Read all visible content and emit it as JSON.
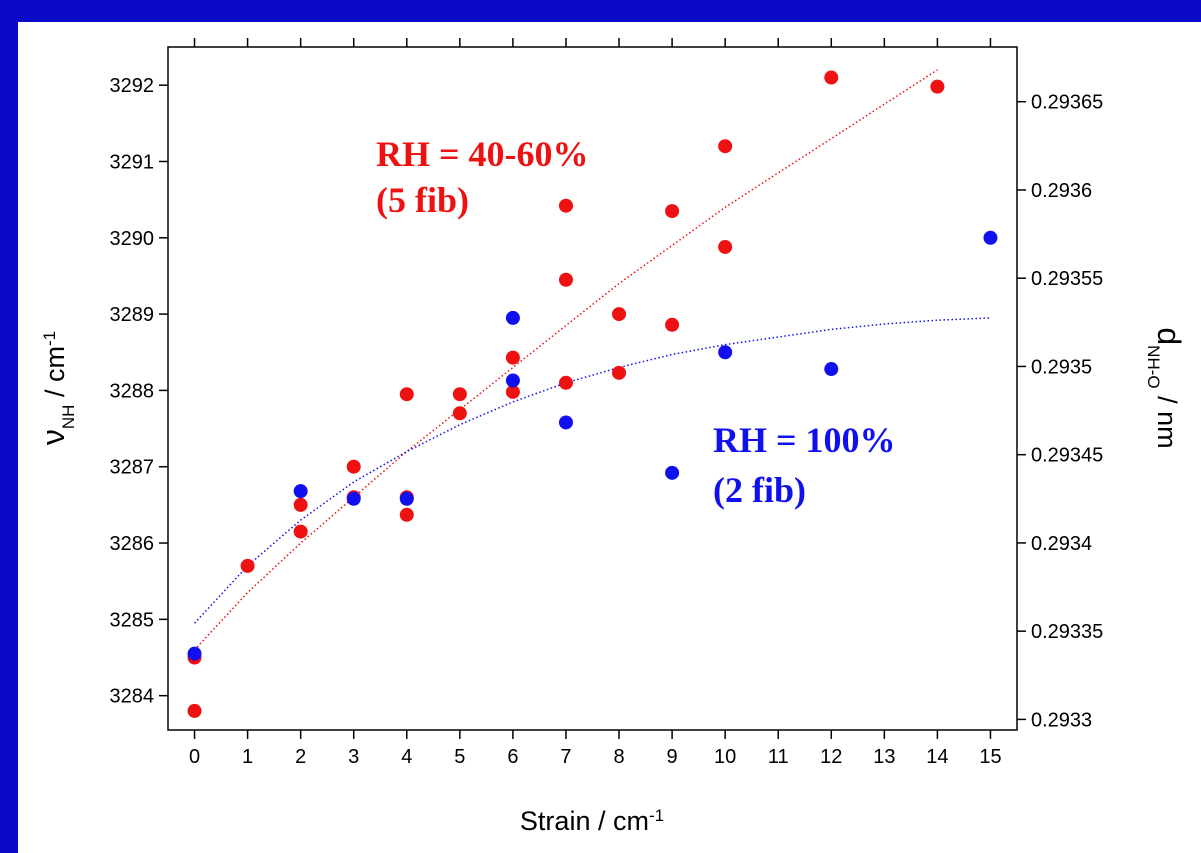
{
  "chart_data": {
    "type": "scatter",
    "x_label": {
      "main": "Strain / cm",
      "sup": "-1"
    },
    "y_label": {
      "main": "ν",
      "sub": "NH",
      "unit": " / cm",
      "sup": "-1"
    },
    "y2_label": {
      "main": "d",
      "sub": "NH-O",
      "unit": " / nm"
    },
    "xlim": [
      -0.5,
      15.5
    ],
    "xticks": [
      0,
      1,
      2,
      3,
      4,
      5,
      6,
      7,
      8,
      9,
      10,
      11,
      12,
      13,
      14,
      15
    ],
    "ylim": [
      3283.55,
      3292.5
    ],
    "yticks": [
      3284,
      3285,
      3286,
      3287,
      3288,
      3289,
      3290,
      3291,
      3292
    ],
    "y2lim": [
      0.293294,
      0.293681
    ],
    "y2ticks": [
      0.2933,
      0.29335,
      0.2934,
      0.29345,
      0.2935,
      0.29355,
      0.2936,
      0.29365
    ],
    "series": [
      {
        "name": "RH = 40-60%",
        "note": "(5 fib)",
        "color": "#ee1111",
        "x": [
          0,
          0,
          1,
          2,
          2,
          3,
          3,
          4,
          4,
          4,
          5,
          5,
          6,
          6,
          7,
          7,
          7,
          8,
          8,
          9,
          9,
          10,
          10,
          12,
          14
        ],
        "values": [
          3284.5,
          3283.8,
          3285.7,
          3286.5,
          3286.15,
          3287.0,
          3286.6,
          3287.95,
          3286.6,
          3286.37,
          3287.95,
          3287.7,
          3288.43,
          3287.98,
          3290.42,
          3289.45,
          3288.1,
          3289.0,
          3288.23,
          3290.35,
          3288.86,
          3291.2,
          3289.88,
          3292.1,
          3291.98
        ]
      },
      {
        "name": "RH = 100%",
        "note": "(2 fib)",
        "color": "#1010ee",
        "x": [
          0,
          2,
          3,
          4,
          6,
          6,
          7,
          9,
          10,
          12,
          15
        ],
        "values": [
          3284.55,
          3286.68,
          3286.58,
          3286.58,
          3288.95,
          3288.13,
          3287.58,
          3286.92,
          3288.5,
          3288.28,
          3290.0
        ]
      }
    ],
    "fits": [
      {
        "color": "#ee1111",
        "x": [
          0,
          1,
          2,
          3,
          4,
          5,
          6,
          7,
          8,
          9,
          10,
          11,
          12,
          13,
          14
        ],
        "values": [
          3284.6,
          3285.35,
          3286.0,
          3286.6,
          3287.2,
          3287.75,
          3288.3,
          3288.85,
          3289.4,
          3289.9,
          3290.4,
          3290.85,
          3291.3,
          3291.75,
          3292.2
        ]
      },
      {
        "color": "#1010ee",
        "x": [
          0,
          1,
          2,
          3,
          4,
          5,
          6,
          7,
          8,
          9,
          10,
          11,
          12,
          13,
          14,
          15
        ],
        "values": [
          3284.95,
          3285.7,
          3286.3,
          3286.8,
          3287.2,
          3287.55,
          3287.85,
          3288.1,
          3288.3,
          3288.47,
          3288.6,
          3288.7,
          3288.8,
          3288.87,
          3288.92,
          3288.95
        ]
      }
    ]
  }
}
